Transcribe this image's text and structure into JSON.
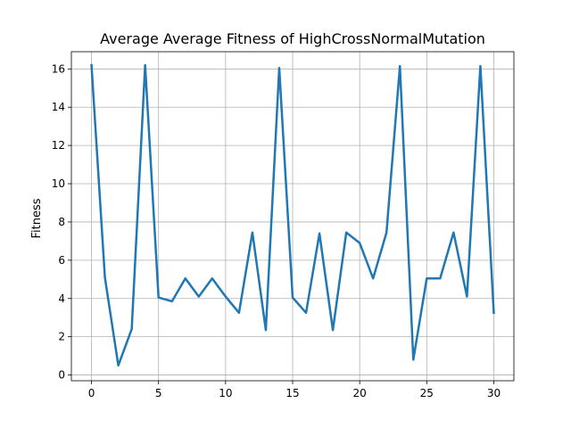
{
  "chart_data": {
    "type": "line",
    "title": "Average Average Fitness of HighCrossNormalMutation",
    "xlabel": "",
    "ylabel": "Fitness",
    "xlim": [
      -1.5,
      31.5
    ],
    "ylim": [
      -0.3,
      16.9
    ],
    "xticks": [
      0,
      5,
      10,
      15,
      20,
      25,
      30
    ],
    "yticks": [
      0,
      2,
      4,
      6,
      8,
      10,
      12,
      14,
      16
    ],
    "grid": true,
    "series": [
      {
        "color": "#1f77b4",
        "x": [
          0,
          1,
          2,
          3,
          4,
          5,
          6,
          7,
          8,
          9,
          10,
          11,
          12,
          13,
          14,
          15,
          16,
          17,
          18,
          19,
          20,
          21,
          22,
          23,
          24,
          25,
          26,
          27,
          28,
          29,
          30
        ],
        "y": [
          16.2,
          5.1,
          0.5,
          2.4,
          16.2,
          4.05,
          3.85,
          5.05,
          4.1,
          5.05,
          4.1,
          3.25,
          7.45,
          2.35,
          16.05,
          4.05,
          3.25,
          7.4,
          2.35,
          7.45,
          6.9,
          5.05,
          7.45,
          16.15,
          0.8,
          5.05,
          5.05,
          7.45,
          4.1,
          16.15,
          3.25
        ]
      }
    ]
  }
}
